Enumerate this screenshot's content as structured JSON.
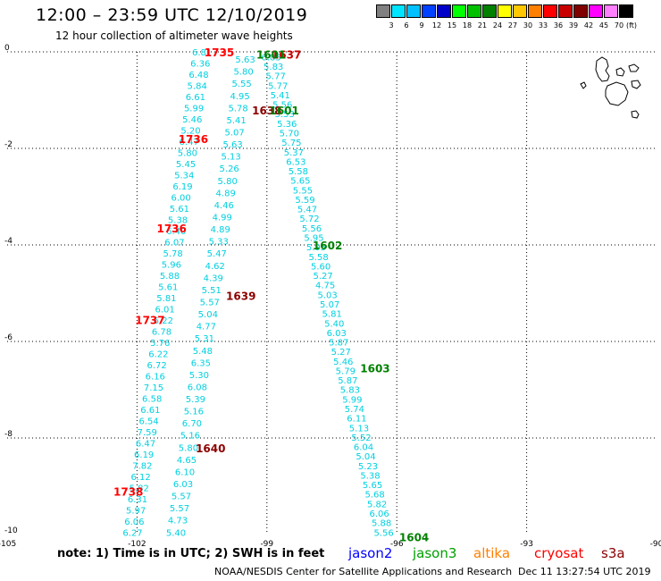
{
  "header": {
    "title": "12:00 – 23:59 UTC 12/10/2019",
    "subtitle": "12 hour collection of altimeter wave heights"
  },
  "legend": {
    "unit": "(ft)",
    "bins": [
      {
        "label": "3",
        "color": "#808080"
      },
      {
        "label": "6",
        "color": "#00e5ff"
      },
      {
        "label": "9",
        "color": "#00c0ff"
      },
      {
        "label": "12",
        "color": "#0040ff"
      },
      {
        "label": "15",
        "color": "#0000c8"
      },
      {
        "label": "18",
        "color": "#00ff00"
      },
      {
        "label": "21",
        "color": "#00c000"
      },
      {
        "label": "24",
        "color": "#008000"
      },
      {
        "label": "27",
        "color": "#ffff00"
      },
      {
        "label": "30",
        "color": "#ffc800"
      },
      {
        "label": "33",
        "color": "#ff8000"
      },
      {
        "label": "36",
        "color": "#ff0000"
      },
      {
        "label": "39",
        "color": "#c80000"
      },
      {
        "label": "42",
        "color": "#800000"
      },
      {
        "label": "45",
        "color": "#ff00ff"
      },
      {
        "label": "70",
        "color": "#ff80ff"
      },
      {
        "label": "",
        "color": "#000000"
      }
    ]
  },
  "axes": {
    "lon_labels": [
      "-105",
      "-102",
      "-99",
      "-96",
      "-93",
      "-90"
    ],
    "lat_labels": [
      "0",
      "-2",
      "-4",
      "-6",
      "-8",
      "-10"
    ]
  },
  "chart_data": {
    "type": "scatter",
    "xlim": [
      -105,
      -90
    ],
    "ylim": [
      -10,
      0
    ],
    "grid": true,
    "tracks": [
      {
        "satellite": "altika",
        "color": "#00d0e0",
        "start": {
          "lon": -100.5,
          "lat": 0.0
        },
        "end": {
          "lon": -102.1,
          "lat": -9.95
        },
        "values": [
          "6.81",
          "6.36",
          "6.48",
          "5.84",
          "6.61",
          "5.99",
          "5.46",
          "5.20",
          "6.47",
          "5.80",
          "5.45",
          "5.34",
          "6.19",
          "6.00",
          "5.61",
          "5.38",
          "6.40",
          "6.07",
          "5.78",
          "5.96",
          "5.88",
          "5.61",
          "5.81",
          "6.01",
          "6.22",
          "6.78",
          "5.76",
          "6.22",
          "6.72",
          "6.16",
          "7.15",
          "6.58",
          "6.61",
          "6.54",
          "7.59",
          "6.47",
          "6.19",
          "7.82",
          "6.12",
          "5.82",
          "6.31",
          "5.97",
          "6.06",
          "6.27"
        ]
      },
      {
        "satellite": "s3a",
        "color": "#00d0e0",
        "start": {
          "lon": -99.5,
          "lat": -0.15
        },
        "end": {
          "lon": -101.1,
          "lat": -9.95
        },
        "values": [
          "5.63",
          "5.80",
          "5.55",
          "4.95",
          "5.78",
          "5.41",
          "5.07",
          "5.63",
          "5.13",
          "5.26",
          "5.80",
          "4.89",
          "4.46",
          "4.99",
          "4.89",
          "5.33",
          "5.47",
          "4.62",
          "4.39",
          "5.51",
          "5.57",
          "5.04",
          "4.77",
          "5.31",
          "5.48",
          "6.35",
          "5.30",
          "6.08",
          "5.39",
          "5.16",
          "6.70",
          "5.16",
          "5.80",
          "4.65",
          "6.10",
          "6.03",
          "5.57",
          "5.57",
          "4.73",
          "5.40"
        ]
      },
      {
        "satellite": "jason3",
        "color": "#00d0e0",
        "start": {
          "lon": -98.9,
          "lat": -0.1
        },
        "end": {
          "lon": -96.3,
          "lat": -9.95
        },
        "values": [
          "6.85",
          "5.83",
          "5.77",
          "5.77",
          "5.41",
          "5.56",
          "5.53",
          "5.36",
          "5.70",
          "5.75",
          "5.37",
          "6.53",
          "5.58",
          "5.65",
          "5.55",
          "5.59",
          "5.47",
          "5.72",
          "5.56",
          "5.95",
          "5.95",
          "5.58",
          "5.60",
          "5.27",
          "4.75",
          "5.03",
          "5.07",
          "5.81",
          "5.40",
          "6.03",
          "5.87",
          "5.27",
          "5.46",
          "5.79",
          "5.87",
          "5.83",
          "5.99",
          "5.74",
          "6.11",
          "5.13",
          "5.52",
          "6.04",
          "5.04",
          "5.23",
          "5.38",
          "5.65",
          "5.68",
          "5.82",
          "6.06",
          "5.88",
          "5.56"
        ]
      }
    ],
    "time_labels": [
      {
        "text": "1735",
        "lon": -100.1,
        "lat": 0.0,
        "color": "#ff0000"
      },
      {
        "text": "1736",
        "lon": -100.7,
        "lat": -1.8,
        "color": "#ff0000"
      },
      {
        "text": "1736",
        "lon": -101.2,
        "lat": -3.65,
        "color": "#ff0000"
      },
      {
        "text": "1737",
        "lon": -101.7,
        "lat": -5.55,
        "color": "#ff0000"
      },
      {
        "text": "1738",
        "lon": -102.2,
        "lat": -9.1,
        "color": "#ff0000"
      },
      {
        "text": "1637",
        "lon": -98.55,
        "lat": -0.05,
        "color": "#c80000"
      },
      {
        "text": "1638",
        "lon": -99.0,
        "lat": -1.2,
        "color": "#8b0000"
      },
      {
        "text": "1639",
        "lon": -99.6,
        "lat": -5.05,
        "color": "#8b0000"
      },
      {
        "text": "1640",
        "lon": -100.3,
        "lat": -8.2,
        "color": "#8b0000"
      },
      {
        "text": "1601",
        "lon": -98.9,
        "lat": -0.05,
        "color": "#008000"
      },
      {
        "text": "1601",
        "lon": -98.6,
        "lat": -1.2,
        "color": "#008000"
      },
      {
        "text": "1602",
        "lon": -97.6,
        "lat": -4.0,
        "color": "#008000"
      },
      {
        "text": "1603",
        "lon": -96.5,
        "lat": -6.55,
        "color": "#008000"
      },
      {
        "text": "1604",
        "lon": -95.6,
        "lat": -10.05,
        "color": "#008000"
      }
    ]
  },
  "note": "note:  1) Time is in UTC; 2) SWH is in feet",
  "satellites": [
    {
      "name": "jason2",
      "color": "#0000ff"
    },
    {
      "name": "jason3",
      "color": "#00a000"
    },
    {
      "name": "altika",
      "color": "#ff8000"
    },
    {
      "name": "cryosat",
      "color": "#ff0000"
    },
    {
      "name": "s3a",
      "color": "#8b0000"
    }
  ],
  "footer": {
    "credit": "NOAA/NESDIS Center for Satellite Applications and Research",
    "timestamp": "Dec 11 13:27:54 UTC 2019"
  }
}
